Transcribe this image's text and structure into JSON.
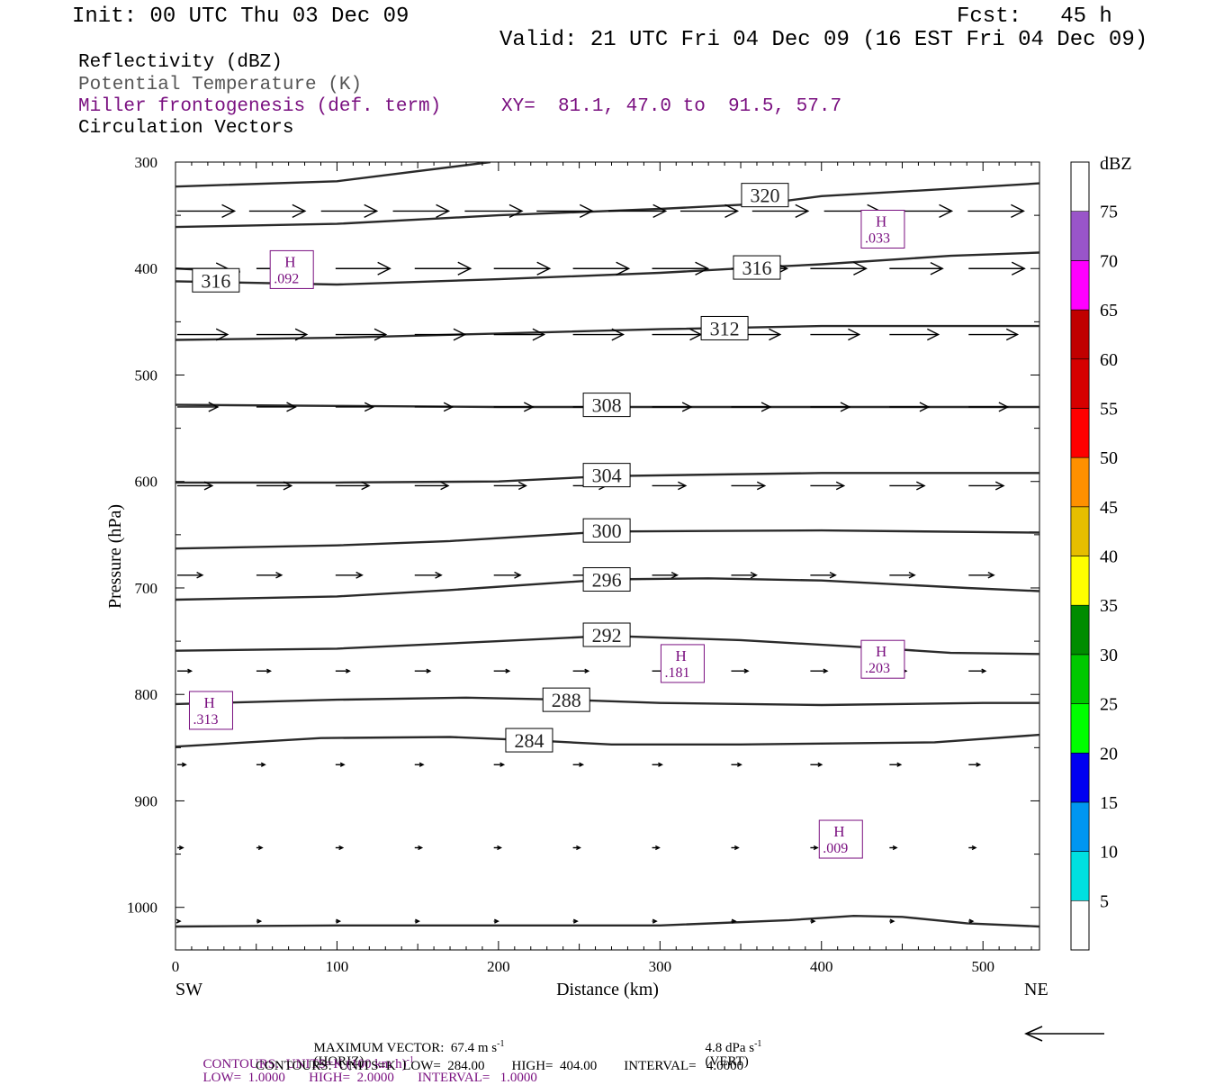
{
  "header": {
    "init": "Init: 00 UTC Thu 03 Dec 09",
    "fcst": "Fcst:   45 h",
    "valid": "Valid: 21 UTC Fri 04 Dec 09 (16 EST Fri 04 Dec 09)"
  },
  "legend": {
    "reflectivity": "Reflectivity (dBZ)",
    "theta": "Potential Temperature (K)",
    "miller": "Miller frontogenesis (def. term)",
    "xy": "XY=  81.1, 47.0 to  91.5, 57.7",
    "vectors": "Circulation Vectors"
  },
  "footer": {
    "max_vector_label": "MAXIMUM VECTOR:  67.4 m s",
    "max_vector_unit": "(HORIZ)",
    "vert_label": "4.8 dPa s",
    "vert_unit": "(VERT)",
    "contours_purple_a": "CONTOURS:  UNITS=K (100 km h)",
    "contours_purple_b": "LOW=  1.0000       HIGH=  2.0000       INTERVAL=   1.0000",
    "contours_black": "CONTOURS:  UNITS=K  LOW=  284.00        HIGH=  404.00        INTERVAL=   4.0000",
    "sup_neg1": "-1"
  },
  "colors": {
    "purple": "#7a1080",
    "vector": "#000000",
    "contour": "#2a2a2a"
  },
  "chart_data": {
    "type": "cross-section",
    "xlabel": "Distance (km)",
    "ylabel": "Pressure (hPa)",
    "x_left_label": "SW",
    "x_right_label": "NE",
    "xlim": [
      0,
      535
    ],
    "ylim": [
      1040,
      300
    ],
    "x_ticks": [
      "0",
      "100",
      "200",
      "300",
      "400",
      "500"
    ],
    "y_ticks": [
      "300",
      "400",
      "500",
      "600",
      "700",
      "800",
      "900",
      "1000"
    ],
    "colorbar": {
      "unit": "dBZ",
      "labels": [
        "5",
        "10",
        "15",
        "20",
        "25",
        "30",
        "35",
        "40",
        "45",
        "50",
        "55",
        "60",
        "65",
        "70",
        "75"
      ],
      "colors": [
        "#00e0e0",
        "#0096f0",
        "#0000f0",
        "#00ff00",
        "#00c800",
        "#008c00",
        "#ffff00",
        "#e6be00",
        "#ff9000",
        "#ff0000",
        "#d60000",
        "#c00000",
        "#ff00ff",
        "#9955c9"
      ]
    },
    "theta_contours": [
      {
        "label": "320",
        "label_x": 365,
        "label_p": 331,
        "points": [
          [
            0,
            323
          ],
          [
            100,
            318
          ],
          [
            195,
            300
          ]
        ]
      },
      {
        "label": "320",
        "label_x": 365,
        "label_p": 331,
        "show_label": true,
        "points": [
          [
            0,
            361
          ],
          [
            100,
            358
          ],
          [
            200,
            350
          ],
          [
            300,
            344
          ],
          [
            365,
            339
          ],
          [
            400,
            332
          ],
          [
            480,
            325
          ],
          [
            535,
            320
          ]
        ]
      },
      {
        "label": "316",
        "label_x": 360,
        "label_p": 399,
        "points": [
          [
            0,
            412
          ],
          [
            100,
            415
          ],
          [
            200,
            410
          ],
          [
            300,
            404
          ],
          [
            360,
            399
          ],
          [
            400,
            396
          ],
          [
            480,
            388
          ],
          [
            535,
            385
          ]
        ]
      },
      {
        "label": "316",
        "label_x": 25,
        "label_p": 411,
        "points": [
          [
            0,
            400
          ],
          [
            40,
            403
          ]
        ]
      },
      {
        "label": "312",
        "label_x": 340,
        "label_p": 456,
        "points": [
          [
            0,
            467
          ],
          [
            100,
            465
          ],
          [
            200,
            461
          ],
          [
            300,
            457
          ],
          [
            400,
            454
          ],
          [
            535,
            454
          ]
        ]
      },
      {
        "label": "308",
        "label_x": 267,
        "label_p": 528,
        "points": [
          [
            0,
            528
          ],
          [
            100,
            529
          ],
          [
            200,
            530
          ],
          [
            300,
            530
          ],
          [
            400,
            530
          ],
          [
            535,
            530
          ]
        ]
      },
      {
        "label": "304",
        "label_x": 267,
        "label_p": 594,
        "points": [
          [
            0,
            601
          ],
          [
            100,
            601
          ],
          [
            200,
            600
          ],
          [
            267,
            595
          ],
          [
            400,
            592
          ],
          [
            535,
            592
          ]
        ]
      },
      {
        "label": "300",
        "label_x": 267,
        "label_p": 646,
        "points": [
          [
            0,
            663
          ],
          [
            100,
            660
          ],
          [
            170,
            656
          ],
          [
            267,
            647
          ],
          [
            400,
            646
          ],
          [
            535,
            648
          ]
        ]
      },
      {
        "label": "296",
        "label_x": 267,
        "label_p": 692,
        "points": [
          [
            0,
            711
          ],
          [
            100,
            708
          ],
          [
            170,
            702
          ],
          [
            267,
            692
          ],
          [
            330,
            691
          ],
          [
            400,
            693
          ],
          [
            490,
            700
          ],
          [
            535,
            703
          ]
        ]
      },
      {
        "label": "292",
        "label_x": 267,
        "label_p": 744,
        "points": [
          [
            0,
            759
          ],
          [
            100,
            757
          ],
          [
            200,
            750
          ],
          [
            267,
            745
          ],
          [
            350,
            749
          ],
          [
            430,
            756
          ],
          [
            480,
            761
          ],
          [
            535,
            762
          ]
        ]
      },
      {
        "label": "288",
        "label_x": 242,
        "label_p": 805,
        "points": [
          [
            0,
            809
          ],
          [
            100,
            805
          ],
          [
            180,
            803
          ],
          [
            242,
            805
          ],
          [
            300,
            808
          ],
          [
            400,
            810
          ],
          [
            500,
            808
          ],
          [
            535,
            808
          ]
        ]
      },
      {
        "label": "284",
        "label_x": 219,
        "label_p": 843,
        "points": [
          [
            0,
            849
          ],
          [
            90,
            841
          ],
          [
            170,
            840
          ],
          [
            219,
            843
          ],
          [
            270,
            847
          ],
          [
            350,
            847
          ],
          [
            470,
            845
          ],
          [
            535,
            838
          ]
        ]
      },
      {
        "label": "",
        "label_x": 0,
        "label_p": 0,
        "points": [
          [
            0,
            1018
          ],
          [
            100,
            1017
          ],
          [
            200,
            1017
          ],
          [
            300,
            1017
          ],
          [
            380,
            1012
          ],
          [
            420,
            1008
          ],
          [
            450,
            1009
          ],
          [
            490,
            1015
          ],
          [
            535,
            1018
          ]
        ]
      }
    ],
    "vector_levels": [
      {
        "p": 346,
        "us": [
          41,
          40,
          40,
          40,
          41,
          40,
          41,
          41,
          40,
          40,
          40,
          40,
          41
        ]
      },
      {
        "p": 400,
        "us": [
          36,
          36,
          39,
          40,
          40,
          40,
          40,
          40,
          40,
          38,
          40,
          40
        ]
      },
      {
        "p": 462,
        "us": [
          36,
          36,
          36,
          36,
          36,
          36,
          35,
          35,
          35,
          35,
          35,
          34
        ]
      },
      {
        "p": 530,
        "us": [
          29,
          28,
          27,
          27,
          28,
          27,
          28,
          28,
          28,
          28,
          28,
          28
        ]
      },
      {
        "p": 604,
        "us": [
          25,
          25,
          24,
          24,
          23,
          24,
          24,
          24,
          24,
          25,
          25,
          24
        ]
      },
      {
        "p": 688,
        "us": [
          18,
          18,
          19,
          19,
          19,
          19,
          18,
          18,
          18,
          18,
          18,
          18
        ]
      },
      {
        "p": 778,
        "us": [
          10,
          10,
          10,
          11,
          11,
          11,
          12,
          12,
          12,
          12,
          12,
          12
        ]
      },
      {
        "p": 866,
        "us": [
          6,
          6,
          6,
          6,
          7,
          7,
          7,
          7,
          8,
          8,
          8,
          8
        ]
      },
      {
        "p": 944,
        "us": [
          4,
          4,
          5,
          5,
          5,
          5,
          5,
          5,
          5,
          5,
          5,
          5
        ]
      },
      {
        "p": 1013,
        "us": [
          2,
          3,
          3,
          3,
          3,
          3,
          3,
          3,
          3,
          3,
          3,
          3
        ]
      }
    ],
    "frontogenesis_highs": [
      {
        "symbol": "H",
        "value": ".092",
        "x": 72,
        "p": 401
      },
      {
        "symbol": "H",
        "value": ".033",
        "x": 438,
        "p": 363
      },
      {
        "symbol": "H",
        "value": ".313",
        "x": 22,
        "p": 815
      },
      {
        "symbol": "H",
        "value": ".181",
        "x": 314,
        "p": 771
      },
      {
        "symbol": "H",
        "value": ".203",
        "x": 438,
        "p": 767
      },
      {
        "symbol": "H",
        "value": ".009",
        "x": 412,
        "p": 936
      }
    ]
  }
}
